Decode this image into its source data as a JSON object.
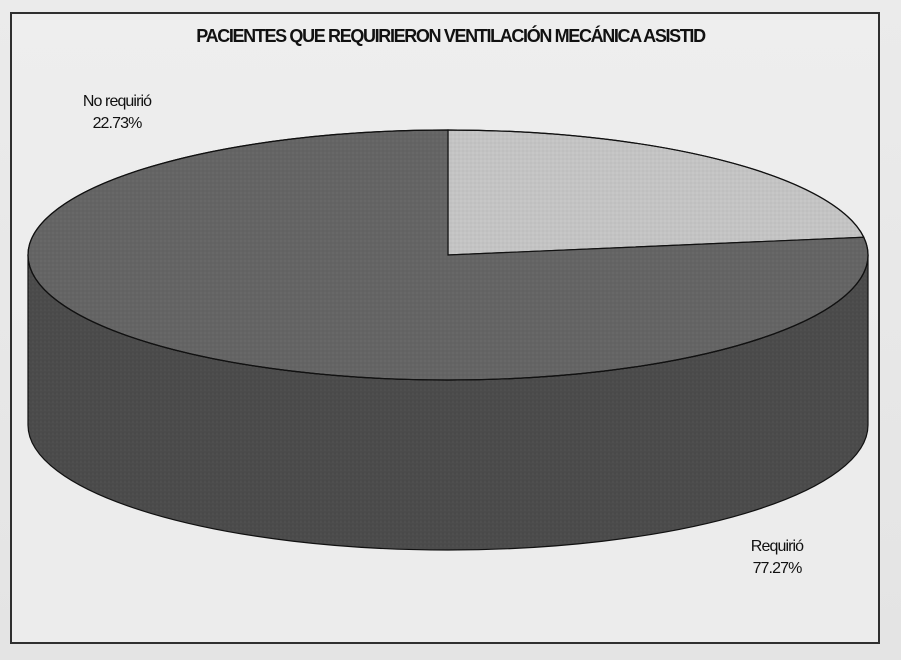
{
  "chart_data": {
    "type": "pie",
    "title": "PACIENTES QUE REQUIRIERON VENTILACIÓN MECÁNICA ASISTID",
    "slices": [
      {
        "label": "No requirió",
        "percent_label": "22.73%",
        "value": 22.73,
        "color": "#bdbdbd"
      },
      {
        "label": "Requirió",
        "percent_label": "77.27%",
        "value": 77.27,
        "color": "#626262"
      }
    ],
    "legend": "none",
    "style": "3d-cylinder-pie"
  }
}
